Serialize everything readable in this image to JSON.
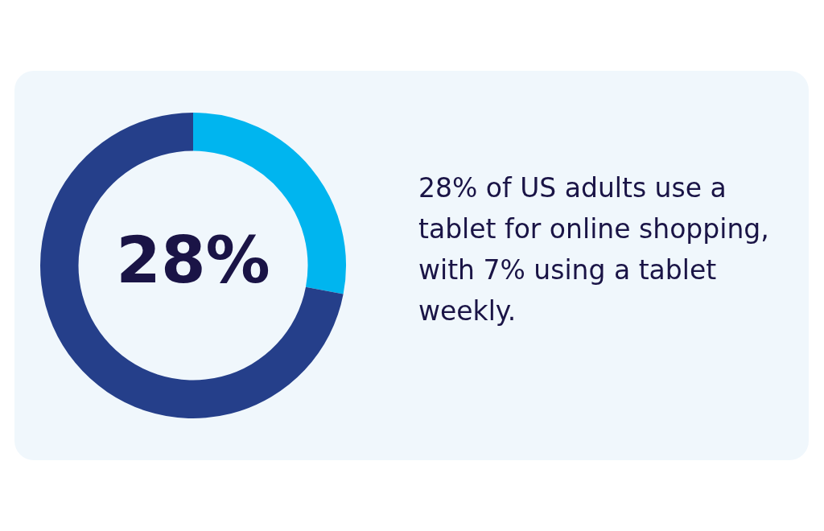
{
  "chart_data": {
    "type": "donut",
    "categories": [
      null,
      null
    ],
    "values": [
      28,
      72
    ],
    "colors": [
      "#00b5ef",
      "#253f8a"
    ],
    "value_labels": [
      "28%",
      null
    ],
    "legend": false,
    "annotations": [
      "28% of US adults use a tablet for online shopping, with 7% using a tablet weekly."
    ]
  }
}
